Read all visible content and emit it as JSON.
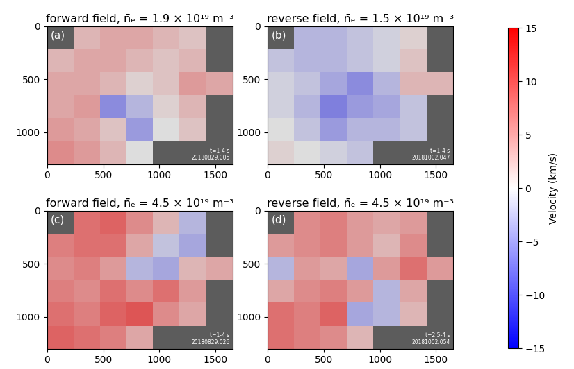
{
  "chart_data": [
    {
      "type": "heatmap",
      "title": "forward field, n̄ₑ = 1.9 × 10¹⁹ m⁻³",
      "panel_label": "(a)",
      "annotations": [
        "t=1-4 s",
        "20180829.005"
      ],
      "xlim": [
        0,
        1650
      ],
      "ylim": [
        1300,
        0
      ],
      "xticks": [
        0,
        500,
        1000,
        1500
      ],
      "yticks": [
        0,
        500,
        1000
      ],
      "x_edges": [
        0,
        236,
        471,
        707,
        943,
        1179,
        1414,
        1650
      ],
      "y_edges": [
        0,
        217,
        433,
        650,
        867,
        1083,
        1300
      ],
      "cells": [
        [
          null,
          3,
          4,
          4,
          3,
          2,
          null
        ],
        [
          3,
          4,
          4,
          3,
          2,
          3,
          null
        ],
        [
          4,
          4,
          3,
          1,
          2,
          5,
          4
        ],
        [
          4,
          5,
          -6,
          -3,
          1,
          3,
          null
        ],
        [
          5,
          4,
          2,
          -5,
          0,
          2,
          null
        ],
        [
          6,
          5,
          3,
          0,
          null,
          null,
          null
        ]
      ]
    },
    {
      "type": "heatmap",
      "title": "reverse field, n̄ₑ = 1.5 × 10¹⁹ m⁻³",
      "panel_label": "(b)",
      "annotations": [
        "t=1-4 s",
        "20181002.047"
      ],
      "xlim": [
        0,
        1650
      ],
      "ylim": [
        1300,
        0
      ],
      "xticks": [
        0,
        500,
        1000,
        1500
      ],
      "yticks": [
        0,
        500,
        1000
      ],
      "x_edges": [
        0,
        236,
        471,
        707,
        943,
        1179,
        1414,
        1650
      ],
      "y_edges": [
        0,
        217,
        433,
        650,
        867,
        1083,
        1300
      ],
      "cells": [
        [
          null,
          -3,
          -3,
          -2,
          -1,
          1,
          null
        ],
        [
          -2,
          -3,
          -3,
          -2,
          -1,
          2,
          null
        ],
        [
          -1,
          -2,
          -4,
          -6,
          -3,
          3,
          3
        ],
        [
          -1,
          -3,
          -7,
          -5,
          -4,
          -2,
          null
        ],
        [
          0,
          -2,
          -5,
          -3,
          -3,
          -2,
          null
        ],
        [
          1,
          0,
          -1,
          -2,
          null,
          null,
          null
        ]
      ]
    },
    {
      "type": "heatmap",
      "title": "forward field, n̄ₑ = 4.5 × 10¹⁹ m⁻³",
      "panel_label": "(c)",
      "annotations": [
        "t=1-4 s",
        "20180829.026"
      ],
      "xlim": [
        0,
        1650
      ],
      "ylim": [
        1300,
        0
      ],
      "xticks": [
        0,
        500,
        1000,
        1500
      ],
      "yticks": [
        0,
        500,
        1000
      ],
      "x_edges": [
        0,
        236,
        471,
        707,
        943,
        1179,
        1414,
        1650
      ],
      "y_edges": [
        0,
        217,
        433,
        650,
        867,
        1083,
        1300
      ],
      "cells": [
        [
          null,
          8,
          9,
          6,
          3,
          -3,
          null
        ],
        [
          7,
          8,
          8,
          4,
          -2,
          -4,
          null
        ],
        [
          6,
          7,
          5,
          -3,
          -4,
          3,
          4
        ],
        [
          7,
          6,
          8,
          6,
          8,
          5,
          null
        ],
        [
          8,
          7,
          9,
          10,
          6,
          4,
          null
        ],
        [
          9,
          8,
          7,
          4,
          null,
          null,
          null
        ]
      ]
    },
    {
      "type": "heatmap",
      "title": "reverse field, n̄ₑ = 4.5 × 10¹⁹ m⁻³",
      "panel_label": "(d)",
      "annotations": [
        "t=2.5-4 s",
        "20181002.054"
      ],
      "xlim": [
        0,
        1650
      ],
      "ylim": [
        1300,
        0
      ],
      "xticks": [
        0,
        500,
        1000,
        1500
      ],
      "yticks": [
        0,
        500,
        1000
      ],
      "x_edges": [
        0,
        236,
        471,
        707,
        943,
        1179,
        1414,
        1650
      ],
      "y_edges": [
        0,
        217,
        433,
        650,
        867,
        1083,
        1300
      ],
      "cells": [
        [
          null,
          6,
          7,
          5,
          4,
          5,
          null
        ],
        [
          5,
          6,
          7,
          5,
          3,
          6,
          null
        ],
        [
          -3,
          5,
          4,
          -4,
          5,
          8,
          5
        ],
        [
          4,
          6,
          7,
          5,
          -3,
          4,
          null
        ],
        [
          8,
          7,
          9,
          -4,
          -3,
          3,
          null
        ],
        [
          8,
          7,
          6,
          3,
          null,
          null,
          null
        ]
      ]
    }
  ],
  "colorbar": {
    "label": "Velocity (km/s)",
    "range": [
      -15,
      15
    ],
    "ticks": [
      {
        "value": -15,
        "label": "−15"
      },
      {
        "value": -10,
        "label": "−10"
      },
      {
        "value": -5,
        "label": "−5"
      },
      0,
      5,
      10,
      15
    ]
  }
}
